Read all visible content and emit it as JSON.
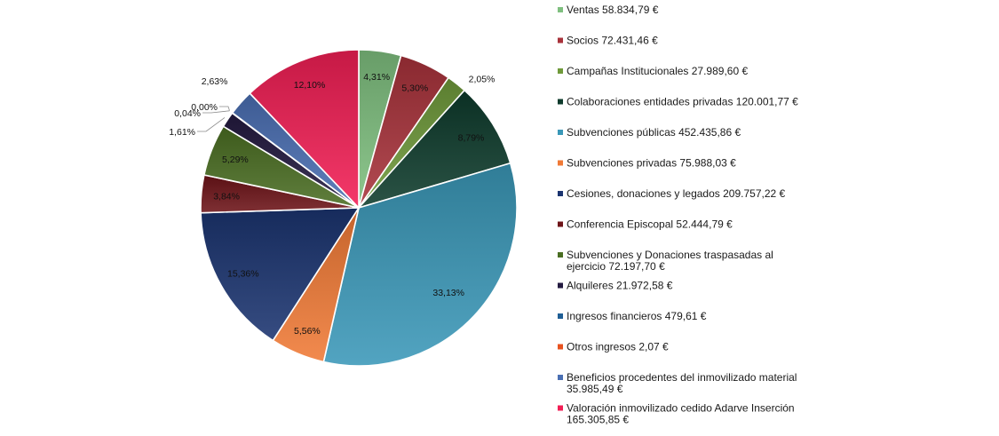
{
  "chart_data": {
    "type": "pie",
    "title": "",
    "legend_position": "right",
    "slices": [
      {
        "label": "Ventas 58.834,79 €",
        "legend_lines": [
          "Ventas 58.834,79 €"
        ],
        "value": 58834.79,
        "percent_label": "4,31%",
        "color": "#7fbf7f"
      },
      {
        "label": "Socios 72.431,46 €",
        "legend_lines": [
          "Socios 72.431,46 €"
        ],
        "value": 72431.46,
        "percent_label": "5,30%",
        "color": "#a8323a"
      },
      {
        "label": "Campañas Institucionales 27.989,60 €",
        "legend_lines": [
          "Campañas Institucionales 27.989,60 €"
        ],
        "value": 27989.6,
        "percent_label": "2,05%",
        "color": "#6f9a3a"
      },
      {
        "label": "Colaboraciones entidades privadas 120.001,77 €",
        "legend_lines": [
          "Colaboraciones entidades privadas 120.001,77 €"
        ],
        "value": 120001.77,
        "percent_label": "8,79%",
        "color": "#0e3b2c"
      },
      {
        "label": "Subvenciones públicas 452.435,86 €",
        "legend_lines": [
          "Subvenciones públicas 452.435,86 €"
        ],
        "value": 452435.86,
        "percent_label": "33,13%",
        "color": "#3a98b8"
      },
      {
        "label": "Subvenciones privadas 75.988,03 €",
        "legend_lines": [
          "Subvenciones privadas 75.988,03 €"
        ],
        "value": 75988.03,
        "percent_label": "5,56%",
        "color": "#f07a36"
      },
      {
        "label": "Cesiones, donaciones y legados 209.757,22 €",
        "legend_lines": [
          "Cesiones, donaciones y legados 209.757,22 €"
        ],
        "value": 209757.22,
        "percent_label": "15,36%",
        "color": "#1b3470"
      },
      {
        "label": "Conferencia Episcopal 52.444,79 €",
        "legend_lines": [
          "Conferencia Episcopal 52.444,79 €"
        ],
        "value": 52444.79,
        "percent_label": "3,84%",
        "color": "#6e1418"
      },
      {
        "label": "Subvenciones y Donaciones traspasadas al ejercicio 72.197,70 €",
        "legend_lines": [
          "Subvenciones y Donaciones traspasadas al",
          "ejercicio 72.197,70 €"
        ],
        "value": 72197.7,
        "percent_label": "5,29%",
        "color": "#4a6e22"
      },
      {
        "label": "Alquileres 21.972,58 €",
        "legend_lines": [
          "Alquileres 21.972,58 €"
        ],
        "value": 21972.58,
        "percent_label": "1,61%",
        "color": "#231a40"
      },
      {
        "label": "Ingresos financieros 479,61 €",
        "legend_lines": [
          "Ingresos financieros 479,61 €"
        ],
        "value": 479.61,
        "percent_label": "0,04%",
        "color": "#1f5e95"
      },
      {
        "label": "Otros ingresos 2,07 €",
        "legend_lines": [
          "Otros ingresos 2,07 €"
        ],
        "value": 2.07,
        "percent_label": "0,00%",
        "color": "#e8521f"
      },
      {
        "label": "Beneficios procedentes del inmovilizado material 35.985,49 €",
        "legend_lines": [
          "Beneficios procedentes del inmovilizado material",
          "35.985,49 €"
        ],
        "value": 35985.49,
        "percent_label": "2,63%",
        "color": "#4a6fb3"
      },
      {
        "label": "Valoración inmovilizado cedido Adarve Inserción 165.305,85 €",
        "legend_lines": [
          "Valoración inmovilizado cedido Adarve Inserción",
          "165.305,85 €"
        ],
        "value": 165305.85,
        "percent_label": "12,10%",
        "color": "#f21e54"
      }
    ]
  }
}
